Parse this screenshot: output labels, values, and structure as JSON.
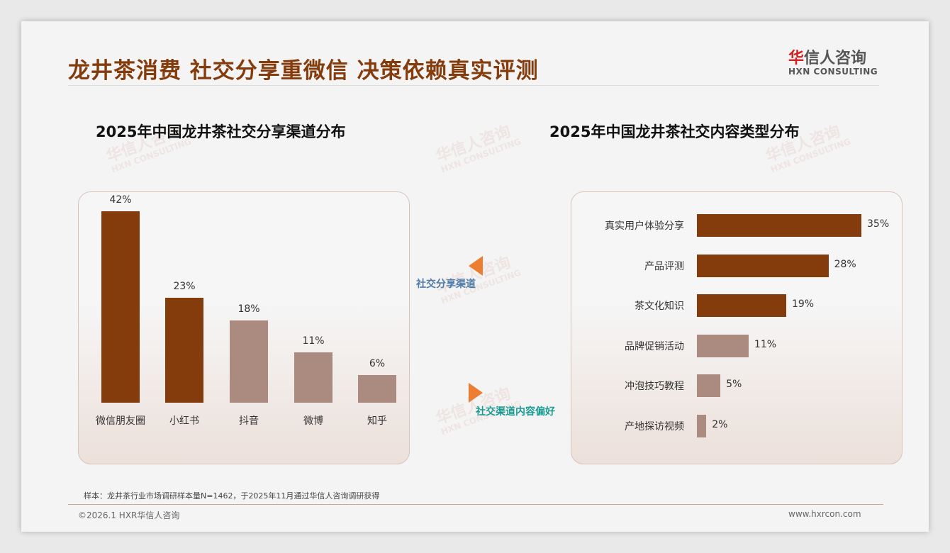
{
  "header": {
    "title": "龙井茶消费 社交分享重微信 决策依赖真实评测",
    "logo_cn_red": "华",
    "logo_cn_rest": "信人咨询",
    "logo_en": "HXN CONSULTING"
  },
  "annotations": {
    "left_arrow_label": "社交分享渠道",
    "right_arrow_label": "社交渠道内容偏好"
  },
  "footer": {
    "note": "样本：龙井茶行业市场调研样本量N=1462，于2025年11月通过华信人咨询调研获得",
    "copyright": "©2026.1 HXR华信人咨询",
    "url": "www.hxrcon.com"
  },
  "colors": {
    "dark": "#843c0c",
    "light": "#ab8b80",
    "arrow": "#ed7d31"
  },
  "chart_data": [
    {
      "type": "bar",
      "title": "2025年中国龙井茶社交分享渠道分布",
      "categories": [
        "微信朋友圈",
        "小红书",
        "抖音",
        "微博",
        "知乎"
      ],
      "values": [
        42,
        23,
        18,
        11,
        6
      ],
      "labels": [
        "42%",
        "23%",
        "18%",
        "11%",
        "6%"
      ],
      "highlight": [
        true,
        true,
        false,
        false,
        false
      ],
      "ylim": [
        0,
        42
      ]
    },
    {
      "type": "bar",
      "orientation": "horizontal",
      "title": "2025年中国龙井茶社交内容类型分布",
      "categories": [
        "真实用户体验分享",
        "产品评测",
        "茶文化知识",
        "品牌促销活动",
        "冲泡技巧教程",
        "产地探访视频"
      ],
      "values": [
        35,
        28,
        19,
        11,
        5,
        2
      ],
      "labels": [
        "35%",
        "28%",
        "19%",
        "11%",
        "5%",
        "2%"
      ],
      "highlight": [
        true,
        true,
        true,
        false,
        false,
        false
      ],
      "xlim": [
        0,
        35
      ]
    }
  ]
}
